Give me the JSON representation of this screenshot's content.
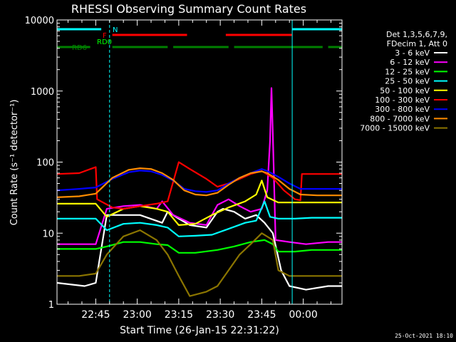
{
  "chart_data": {
    "type": "line",
    "title": "RHESSI Observing Summary Count Rates",
    "xlabel": "Start Time (26-Jan-15 22:31:22)",
    "ylabel": "Count Rate (s⁻¹ detector⁻¹)",
    "y_scale": "log",
    "ylim": [
      1,
      10000
    ],
    "xlim_minutes": [
      0,
      103
    ],
    "x_ticks": [
      {
        "label": "22:45",
        "minute": 14
      },
      {
        "label": "23:00",
        "minute": 29
      },
      {
        "label": "23:15",
        "minute": 44
      },
      {
        "label": "23:30",
        "minute": 59
      },
      {
        "label": "23:45",
        "minute": 74
      },
      {
        "label": "00:00",
        "minute": 89
      }
    ],
    "y_ticks": [
      {
        "label": "1",
        "value": 1
      },
      {
        "label": "10",
        "value": 10
      },
      {
        "label": "100",
        "value": 100
      },
      {
        "label": "1000",
        "value": 1000
      },
      {
        "label": "10000",
        "value": 10000
      }
    ],
    "legend_header": [
      "Det 1,3,5,6,7,9,",
      "FDecim 1, Att 0"
    ],
    "legend_position": "right",
    "grid": false,
    "series": [
      {
        "name": "3 - 6 keV",
        "color": "#ffffff",
        "points": [
          [
            0,
            2
          ],
          [
            10,
            1.8
          ],
          [
            14,
            2
          ],
          [
            18,
            18
          ],
          [
            22,
            18
          ],
          [
            30,
            18
          ],
          [
            38,
            14
          ],
          [
            40,
            20
          ],
          [
            44,
            16
          ],
          [
            48,
            13
          ],
          [
            54,
            12
          ],
          [
            58,
            20
          ],
          [
            60,
            22
          ],
          [
            64,
            20
          ],
          [
            68,
            16
          ],
          [
            72,
            18
          ],
          [
            75,
            14
          ],
          [
            78,
            10
          ],
          [
            81,
            3
          ],
          [
            84,
            1.8
          ],
          [
            90,
            1.6
          ],
          [
            98,
            1.8
          ],
          [
            103,
            1.8
          ]
        ]
      },
      {
        "name": "6 - 12 keV",
        "color": "#ff00ff",
        "points": [
          [
            0,
            7
          ],
          [
            10,
            7
          ],
          [
            14,
            7
          ],
          [
            18,
            22
          ],
          [
            24,
            24
          ],
          [
            30,
            25
          ],
          [
            36,
            22
          ],
          [
            38,
            28
          ],
          [
            42,
            18
          ],
          [
            48,
            14
          ],
          [
            54,
            13
          ],
          [
            58,
            25
          ],
          [
            62,
            30
          ],
          [
            66,
            24
          ],
          [
            70,
            20
          ],
          [
            74,
            22
          ],
          [
            76,
            40
          ],
          [
            77,
            200
          ],
          [
            77.5,
            1100
          ],
          [
            78,
            250
          ],
          [
            79,
            8
          ],
          [
            84,
            7.5
          ],
          [
            90,
            7
          ],
          [
            98,
            7.5
          ],
          [
            103,
            7.5
          ]
        ]
      },
      {
        "name": "12 - 25 keV",
        "color": "#00ff00",
        "points": [
          [
            0,
            6
          ],
          [
            10,
            6
          ],
          [
            14,
            6
          ],
          [
            18,
            6.5
          ],
          [
            24,
            7.5
          ],
          [
            30,
            7.5
          ],
          [
            36,
            7
          ],
          [
            40,
            6.8
          ],
          [
            44,
            5.3
          ],
          [
            50,
            5.3
          ],
          [
            58,
            5.8
          ],
          [
            64,
            6.5
          ],
          [
            70,
            7.5
          ],
          [
            75,
            8
          ],
          [
            78,
            7
          ],
          [
            80,
            5.5
          ],
          [
            86,
            5.5
          ],
          [
            92,
            5.8
          ],
          [
            98,
            5.8
          ],
          [
            103,
            5.8
          ]
        ]
      },
      {
        "name": "25 - 50 keV",
        "color": "#00ffff",
        "points": [
          [
            0,
            16
          ],
          [
            10,
            16
          ],
          [
            14,
            16
          ],
          [
            18,
            11
          ],
          [
            24,
            13.5
          ],
          [
            30,
            14
          ],
          [
            36,
            13
          ],
          [
            40,
            12
          ],
          [
            44,
            9
          ],
          [
            50,
            9.2
          ],
          [
            56,
            9.5
          ],
          [
            62,
            11.5
          ],
          [
            68,
            14
          ],
          [
            72,
            15
          ],
          [
            75,
            28
          ],
          [
            77,
            17
          ],
          [
            80,
            16
          ],
          [
            86,
            16
          ],
          [
            92,
            16.5
          ],
          [
            98,
            16.5
          ],
          [
            103,
            16.5
          ]
        ]
      },
      {
        "name": "50 - 100 keV",
        "color": "#ffff00",
        "points": [
          [
            0,
            26
          ],
          [
            10,
            26
          ],
          [
            14,
            26
          ],
          [
            18,
            17
          ],
          [
            24,
            22
          ],
          [
            30,
            24
          ],
          [
            36,
            22
          ],
          [
            40,
            20
          ],
          [
            44,
            13
          ],
          [
            50,
            13.5
          ],
          [
            56,
            18
          ],
          [
            62,
            23
          ],
          [
            68,
            28
          ],
          [
            72,
            35
          ],
          [
            74,
            55
          ],
          [
            76,
            32
          ],
          [
            80,
            27
          ],
          [
            86,
            27
          ],
          [
            92,
            27
          ],
          [
            98,
            27
          ],
          [
            103,
            27
          ]
        ]
      },
      {
        "name": "100 - 300 keV",
        "color": "#ff0000",
        "points": [
          [
            0,
            68
          ],
          [
            8,
            70
          ],
          [
            14,
            85
          ],
          [
            14.5,
            30
          ],
          [
            20,
            23
          ],
          [
            24,
            22
          ],
          [
            30,
            24
          ],
          [
            36,
            26
          ],
          [
            40,
            28
          ],
          [
            44,
            100
          ],
          [
            48,
            80
          ],
          [
            54,
            58
          ],
          [
            58,
            45
          ],
          [
            62,
            50
          ],
          [
            66,
            58
          ],
          [
            70,
            68
          ],
          [
            74,
            75
          ],
          [
            78,
            60
          ],
          [
            82,
            40
          ],
          [
            86,
            30
          ],
          [
            88,
            29
          ],
          [
            88.5,
            68
          ],
          [
            94,
            68
          ],
          [
            98,
            68
          ],
          [
            103,
            68
          ]
        ]
      },
      {
        "name": "300 - 800 keV",
        "color": "#0000ff",
        "points": [
          [
            0,
            40
          ],
          [
            8,
            42
          ],
          [
            14,
            44
          ],
          [
            20,
            58
          ],
          [
            26,
            72
          ],
          [
            30,
            76
          ],
          [
            34,
            74
          ],
          [
            38,
            66
          ],
          [
            42,
            55
          ],
          [
            46,
            42
          ],
          [
            50,
            39
          ],
          [
            54,
            38
          ],
          [
            58,
            40
          ],
          [
            62,
            50
          ],
          [
            66,
            60
          ],
          [
            70,
            70
          ],
          [
            74,
            80
          ],
          [
            76,
            75
          ],
          [
            80,
            62
          ],
          [
            84,
            50
          ],
          [
            88,
            42
          ],
          [
            94,
            42
          ],
          [
            98,
            42
          ],
          [
            103,
            42
          ]
        ]
      },
      {
        "name": "800 - 7000 keV",
        "color": "#ff8c00",
        "points": [
          [
            0,
            32
          ],
          [
            8,
            33
          ],
          [
            14,
            36
          ],
          [
            20,
            60
          ],
          [
            26,
            78
          ],
          [
            30,
            82
          ],
          [
            34,
            80
          ],
          [
            38,
            70
          ],
          [
            42,
            56
          ],
          [
            46,
            40
          ],
          [
            50,
            35
          ],
          [
            54,
            34
          ],
          [
            58,
            37
          ],
          [
            62,
            48
          ],
          [
            66,
            60
          ],
          [
            70,
            70
          ],
          [
            74,
            74
          ],
          [
            76,
            70
          ],
          [
            80,
            56
          ],
          [
            84,
            42
          ],
          [
            88,
            35
          ],
          [
            94,
            34
          ],
          [
            98,
            34
          ],
          [
            103,
            34
          ]
        ]
      },
      {
        "name": "7000 - 15000 keV",
        "color": "#8b7500",
        "points": [
          [
            0,
            2.5
          ],
          [
            8,
            2.5
          ],
          [
            14,
            2.7
          ],
          [
            18,
            5
          ],
          [
            24,
            9
          ],
          [
            30,
            11
          ],
          [
            36,
            8
          ],
          [
            40,
            5
          ],
          [
            44,
            2.5
          ],
          [
            48,
            1.3
          ],
          [
            54,
            1.5
          ],
          [
            58,
            1.8
          ],
          [
            62,
            3
          ],
          [
            66,
            5
          ],
          [
            70,
            7
          ],
          [
            74,
            10
          ],
          [
            78,
            8
          ],
          [
            80,
            3
          ],
          [
            84,
            2.5
          ],
          [
            90,
            2.5
          ],
          [
            98,
            2.5
          ],
          [
            103,
            2.5
          ]
        ]
      }
    ],
    "state_bars": [
      {
        "name": "N",
        "color": "#00ffff",
        "spans": [
          [
            0,
            16
          ],
          [
            85,
            103
          ]
        ]
      },
      {
        "name": "F",
        "color": "#ff0000",
        "spans": [
          [
            20,
            47
          ],
          [
            61,
            85
          ]
        ]
      },
      {
        "name": "RD0",
        "color": "#00ff00",
        "spans": []
      },
      {
        "name": "RD6",
        "color": "#008000",
        "spans": [
          [
            0,
            12
          ],
          [
            20,
            40
          ],
          [
            42,
            62
          ],
          [
            64,
            96
          ],
          [
            98,
            103
          ]
        ]
      }
    ],
    "vlines_minutes": [
      0,
      19,
      85,
      103
    ]
  },
  "timestamp": "25-Oct-2021 18:10"
}
